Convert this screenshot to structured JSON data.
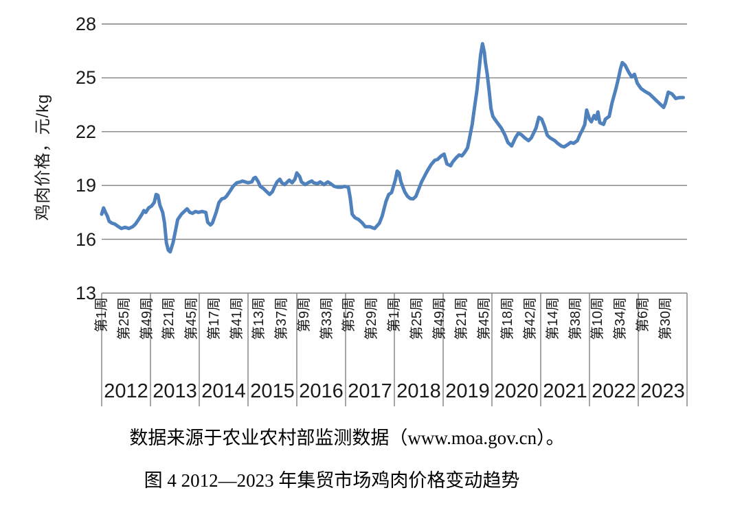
{
  "figure": {
    "y_axis_title": "鸡肉价格，元/kg",
    "caption": "数据来源于农业农村部监测数据（www.moa.gov.cn）。",
    "title": "图 4 2012—2023 年集贸市场鸡肉价格变动趋势"
  },
  "colors": {
    "line": "#4F81BD",
    "grid": "#808080",
    "text": "#1a1a1a",
    "background": "#FFFFFF"
  },
  "chart_data": {
    "type": "line",
    "title": "图 4 2012—2023 年集贸市场鸡肉价格变动趋势",
    "source_note": "数据来源于农业农村部监测数据（www.moa.gov.cn）。",
    "ylabel": "鸡肉价格，元/kg",
    "xlabel": "",
    "ylim": [
      13,
      28
    ],
    "yticks": [
      13,
      16,
      19,
      22,
      25,
      28
    ],
    "grid": "horizontal",
    "legend": "none",
    "x_unit": "year-week",
    "years": [
      "2012",
      "2013",
      "2014",
      "2015",
      "2016",
      "2017",
      "2018",
      "2019",
      "2020",
      "2021",
      "2022",
      "2023"
    ],
    "week_tick_labels": [
      {
        "year": 2012,
        "week": 1,
        "label": "第1周"
      },
      {
        "year": 2012,
        "week": 25,
        "label": "第25周"
      },
      {
        "year": 2012,
        "week": 49,
        "label": "第49周"
      },
      {
        "year": 2013,
        "week": 21,
        "label": "第21周"
      },
      {
        "year": 2013,
        "week": 45,
        "label": "第45周"
      },
      {
        "year": 2014,
        "week": 17,
        "label": "第17周"
      },
      {
        "year": 2014,
        "week": 41,
        "label": "第41周"
      },
      {
        "year": 2015,
        "week": 13,
        "label": "第13周"
      },
      {
        "year": 2015,
        "week": 37,
        "label": "第37周"
      },
      {
        "year": 2016,
        "week": 9,
        "label": "第9周"
      },
      {
        "year": 2016,
        "week": 33,
        "label": "第33周"
      },
      {
        "year": 2017,
        "week": 5,
        "label": "第5周"
      },
      {
        "year": 2017,
        "week": 29,
        "label": "第29周"
      },
      {
        "year": 2018,
        "week": 1,
        "label": "第1周"
      },
      {
        "year": 2018,
        "week": 25,
        "label": "第25周"
      },
      {
        "year": 2018,
        "week": 49,
        "label": "第49周"
      },
      {
        "year": 2019,
        "week": 21,
        "label": "第21周"
      },
      {
        "year": 2019,
        "week": 45,
        "label": "第45周"
      },
      {
        "year": 2020,
        "week": 18,
        "label": "第18周"
      },
      {
        "year": 2020,
        "week": 42,
        "label": "第42周"
      },
      {
        "year": 2021,
        "week": 14,
        "label": "第14周"
      },
      {
        "year": 2021,
        "week": 38,
        "label": "第38周"
      },
      {
        "year": 2022,
        "week": 10,
        "label": "第10周"
      },
      {
        "year": 2022,
        "week": 34,
        "label": "第34周"
      },
      {
        "year": 2023,
        "week": 6,
        "label": "第6周"
      },
      {
        "year": 2023,
        "week": 30,
        "label": "第30周"
      }
    ],
    "series": [
      {
        "name": "集贸市场鸡肉价格",
        "color": "#4F81BD",
        "points": [
          [
            2012,
            1,
            17.4
          ],
          [
            2012,
            3,
            17.75
          ],
          [
            2012,
            5,
            17.5
          ],
          [
            2012,
            7,
            17.3
          ],
          [
            2012,
            9,
            17.0
          ],
          [
            2012,
            12,
            16.9
          ],
          [
            2012,
            15,
            16.85
          ],
          [
            2012,
            19,
            16.7
          ],
          [
            2012,
            22,
            16.6
          ],
          [
            2012,
            26,
            16.67
          ],
          [
            2012,
            30,
            16.6
          ],
          [
            2012,
            34,
            16.7
          ],
          [
            2012,
            37,
            16.85
          ],
          [
            2012,
            41,
            17.15
          ],
          [
            2012,
            44,
            17.4
          ],
          [
            2012,
            46,
            17.6
          ],
          [
            2012,
            48,
            17.5
          ],
          [
            2012,
            51,
            17.75
          ],
          [
            2013,
            2,
            17.85
          ],
          [
            2013,
            5,
            18.05
          ],
          [
            2013,
            7,
            18.5
          ],
          [
            2013,
            9,
            18.45
          ],
          [
            2013,
            11,
            17.9
          ],
          [
            2013,
            14,
            17.5
          ],
          [
            2013,
            16,
            16.9
          ],
          [
            2013,
            18,
            15.8
          ],
          [
            2013,
            20,
            15.4
          ],
          [
            2013,
            22,
            15.3
          ],
          [
            2013,
            25,
            15.8
          ],
          [
            2013,
            27,
            16.3
          ],
          [
            2013,
            30,
            17.1
          ],
          [
            2013,
            34,
            17.4
          ],
          [
            2013,
            38,
            17.6
          ],
          [
            2013,
            40,
            17.7
          ],
          [
            2013,
            43,
            17.5
          ],
          [
            2013,
            46,
            17.45
          ],
          [
            2013,
            49,
            17.55
          ],
          [
            2013,
            52,
            17.5
          ],
          [
            2014,
            4,
            17.55
          ],
          [
            2014,
            8,
            17.5
          ],
          [
            2014,
            10,
            16.95
          ],
          [
            2014,
            13,
            16.8
          ],
          [
            2014,
            15,
            16.9
          ],
          [
            2014,
            19,
            17.5
          ],
          [
            2014,
            22,
            18.05
          ],
          [
            2014,
            25,
            18.25
          ],
          [
            2014,
            28,
            18.3
          ],
          [
            2014,
            30,
            18.4
          ],
          [
            2014,
            34,
            18.7
          ],
          [
            2014,
            37,
            18.95
          ],
          [
            2014,
            41,
            19.15
          ],
          [
            2014,
            45,
            19.2
          ],
          [
            2014,
            47,
            19.25
          ],
          [
            2014,
            50,
            19.2
          ],
          [
            2015,
            1,
            19.15
          ],
          [
            2015,
            5,
            19.2
          ],
          [
            2015,
            7,
            19.4
          ],
          [
            2015,
            9,
            19.45
          ],
          [
            2015,
            12,
            19.2
          ],
          [
            2015,
            14,
            18.95
          ],
          [
            2015,
            17,
            18.85
          ],
          [
            2015,
            20,
            18.7
          ],
          [
            2015,
            22,
            18.6
          ],
          [
            2015,
            24,
            18.5
          ],
          [
            2015,
            27,
            18.65
          ],
          [
            2015,
            29,
            18.9
          ],
          [
            2015,
            32,
            19.2
          ],
          [
            2015,
            35,
            19.35
          ],
          [
            2015,
            37,
            19.15
          ],
          [
            2015,
            40,
            19.05
          ],
          [
            2015,
            43,
            19.2
          ],
          [
            2015,
            45,
            19.3
          ],
          [
            2015,
            48,
            19.15
          ],
          [
            2015,
            51,
            19.35
          ],
          [
            2016,
            1,
            19.7
          ],
          [
            2016,
            4,
            19.5
          ],
          [
            2016,
            6,
            19.2
          ],
          [
            2016,
            10,
            19.05
          ],
          [
            2016,
            13,
            19.15
          ],
          [
            2016,
            17,
            19.25
          ],
          [
            2016,
            19,
            19.15
          ],
          [
            2016,
            23,
            19.1
          ],
          [
            2016,
            26,
            19.2
          ],
          [
            2016,
            30,
            19.05
          ],
          [
            2016,
            34,
            19.2
          ],
          [
            2016,
            37,
            19.1
          ],
          [
            2016,
            41,
            18.95
          ],
          [
            2016,
            45,
            18.9
          ],
          [
            2016,
            48,
            18.9
          ],
          [
            2016,
            52,
            18.95
          ],
          [
            2017,
            4,
            18.9
          ],
          [
            2017,
            6,
            18.3
          ],
          [
            2017,
            8,
            17.4
          ],
          [
            2017,
            11,
            17.2
          ],
          [
            2017,
            15,
            17.1
          ],
          [
            2017,
            19,
            16.9
          ],
          [
            2017,
            22,
            16.7
          ],
          [
            2017,
            27,
            16.7
          ],
          [
            2017,
            32,
            16.6
          ],
          [
            2017,
            37,
            16.9
          ],
          [
            2017,
            40,
            17.3
          ],
          [
            2017,
            44,
            18.1
          ],
          [
            2017,
            47,
            18.5
          ],
          [
            2017,
            50,
            18.6
          ],
          [
            2018,
            2,
            19.3
          ],
          [
            2018,
            4,
            19.8
          ],
          [
            2018,
            6,
            19.7
          ],
          [
            2018,
            8,
            19.2
          ],
          [
            2018,
            12,
            18.65
          ],
          [
            2018,
            15,
            18.4
          ],
          [
            2018,
            18,
            18.27
          ],
          [
            2018,
            21,
            18.25
          ],
          [
            2018,
            24,
            18.4
          ],
          [
            2018,
            27,
            18.8
          ],
          [
            2018,
            30,
            19.2
          ],
          [
            2018,
            33,
            19.5
          ],
          [
            2018,
            36,
            19.8
          ],
          [
            2018,
            40,
            20.15
          ],
          [
            2018,
            44,
            20.4
          ],
          [
            2018,
            47,
            20.45
          ],
          [
            2018,
            51,
            20.65
          ],
          [
            2019,
            2,
            20.75
          ],
          [
            2019,
            5,
            20.2
          ],
          [
            2019,
            9,
            20.1
          ],
          [
            2019,
            11,
            20.3
          ],
          [
            2019,
            15,
            20.55
          ],
          [
            2019,
            18,
            20.7
          ],
          [
            2019,
            21,
            20.65
          ],
          [
            2019,
            24,
            20.85
          ],
          [
            2019,
            27,
            21.1
          ],
          [
            2019,
            29,
            21.6
          ],
          [
            2019,
            32,
            22.4
          ],
          [
            2019,
            34,
            23.2
          ],
          [
            2019,
            37,
            24.3
          ],
          [
            2019,
            39,
            25.3
          ],
          [
            2019,
            41,
            26.3
          ],
          [
            2019,
            43,
            26.9
          ],
          [
            2019,
            45,
            26.4
          ],
          [
            2019,
            46,
            25.9
          ],
          [
            2019,
            48,
            25.2
          ],
          [
            2019,
            50,
            24.3
          ],
          [
            2019,
            52,
            23.3
          ],
          [
            2020,
            2,
            22.85
          ],
          [
            2020,
            6,
            22.55
          ],
          [
            2020,
            11,
            22.2
          ],
          [
            2020,
            15,
            21.8
          ],
          [
            2020,
            18,
            21.4
          ],
          [
            2020,
            22,
            21.2
          ],
          [
            2020,
            26,
            21.65
          ],
          [
            2020,
            29,
            21.9
          ],
          [
            2020,
            32,
            21.85
          ],
          [
            2020,
            36,
            21.65
          ],
          [
            2020,
            40,
            21.5
          ],
          [
            2020,
            43,
            21.65
          ],
          [
            2020,
            48,
            22.2
          ],
          [
            2020,
            51,
            22.8
          ],
          [
            2021,
            2,
            22.7
          ],
          [
            2021,
            5,
            22.3
          ],
          [
            2021,
            8,
            21.8
          ],
          [
            2021,
            11,
            21.65
          ],
          [
            2021,
            16,
            21.5
          ],
          [
            2021,
            19,
            21.35
          ],
          [
            2021,
            23,
            21.2
          ],
          [
            2021,
            26,
            21.15
          ],
          [
            2021,
            29,
            21.25
          ],
          [
            2021,
            33,
            21.4
          ],
          [
            2021,
            36,
            21.35
          ],
          [
            2021,
            40,
            21.5
          ],
          [
            2021,
            43,
            21.85
          ],
          [
            2021,
            45,
            22.05
          ],
          [
            2021,
            48,
            22.4
          ],
          [
            2021,
            50,
            23.2
          ],
          [
            2022,
            1,
            22.7
          ],
          [
            2022,
            3,
            22.55
          ],
          [
            2022,
            6,
            22.9
          ],
          [
            2022,
            8,
            22.7
          ],
          [
            2022,
            10,
            23.1
          ],
          [
            2022,
            12,
            22.5
          ],
          [
            2022,
            16,
            22.4
          ],
          [
            2022,
            18,
            22.7
          ],
          [
            2022,
            22,
            22.85
          ],
          [
            2022,
            25,
            23.6
          ],
          [
            2022,
            29,
            24.35
          ],
          [
            2022,
            32,
            25.0
          ],
          [
            2022,
            34,
            25.5
          ],
          [
            2022,
            36,
            25.85
          ],
          [
            2022,
            39,
            25.7
          ],
          [
            2022,
            43,
            25.3
          ],
          [
            2022,
            46,
            25.05
          ],
          [
            2022,
            49,
            25.2
          ],
          [
            2022,
            52,
            24.7
          ],
          [
            2023,
            4,
            24.4
          ],
          [
            2023,
            8,
            24.25
          ],
          [
            2023,
            13,
            24.1
          ],
          [
            2023,
            17,
            23.9
          ],
          [
            2023,
            21,
            23.7
          ],
          [
            2023,
            25,
            23.5
          ],
          [
            2023,
            28,
            23.35
          ],
          [
            2023,
            30,
            23.6
          ],
          [
            2023,
            33,
            24.2
          ],
          [
            2023,
            37,
            24.1
          ],
          [
            2023,
            41,
            23.85
          ],
          [
            2023,
            45,
            23.9
          ],
          [
            2023,
            49,
            23.9
          ]
        ]
      }
    ]
  }
}
